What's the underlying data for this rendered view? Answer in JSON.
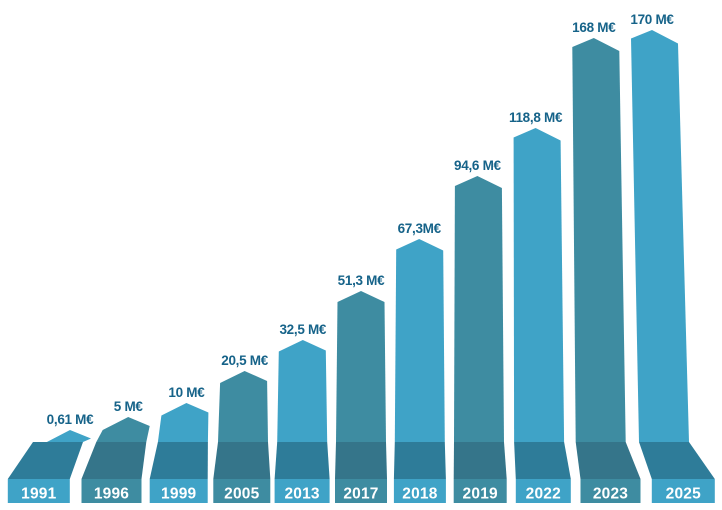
{
  "chart_data": {
    "type": "bar",
    "style": "3d-perspective-pointed-bars",
    "title": "",
    "xlabel": "",
    "ylabel": "",
    "unit": "M€",
    "axes_visible": false,
    "grid": false,
    "legend": false,
    "background": "#FFFFFF",
    "categories": [
      "1991",
      "1996",
      "1999",
      "2005",
      "2013",
      "2017",
      "2018",
      "2019",
      "2022",
      "2023",
      "2025"
    ],
    "values": [
      0.61,
      5,
      10,
      20.5,
      32.5,
      51.3,
      67.3,
      94.6,
      118.8,
      168,
      170
    ],
    "value_labels": [
      "0,61 M€",
      "5 M€",
      "10 M€",
      "20,5 M€",
      "32,5 M€",
      "51,3 M€",
      "67,3M€",
      "94,6 M€",
      "118,8 M€",
      "168 M€",
      "170 M€"
    ],
    "bars": [
      {
        "year": "1991",
        "value": 0.61,
        "label": "0,61 M€",
        "tone": "light"
      },
      {
        "year": "1996",
        "value": 5,
        "label": "5 M€",
        "tone": "dark"
      },
      {
        "year": "1999",
        "value": 10,
        "label": "10 M€",
        "tone": "light"
      },
      {
        "year": "2005",
        "value": 20.5,
        "label": "20,5 M€",
        "tone": "dark"
      },
      {
        "year": "2013",
        "value": 32.5,
        "label": "32,5 M€",
        "tone": "light"
      },
      {
        "year": "2017",
        "value": 51.3,
        "label": "51,3 M€",
        "tone": "dark"
      },
      {
        "year": "2018",
        "value": 67.3,
        "label": "67,3M€",
        "tone": "light"
      },
      {
        "year": "2019",
        "value": 94.6,
        "label": "94,6 M€",
        "tone": "dark"
      },
      {
        "year": "2022",
        "value": 118.8,
        "label": "118,8 M€",
        "tone": "light"
      },
      {
        "year": "2023",
        "value": 168,
        "label": "168 M€",
        "tone": "dark"
      },
      {
        "year": "2025",
        "value": 170,
        "label": "170 M€",
        "tone": "light"
      }
    ],
    "colors": {
      "bar_light": "#3FA3C7",
      "bar_dark": "#3E8CA1",
      "pedestal_light": "#2E7C99",
      "pedestal_dark": "#35758A",
      "value_text": "#166389",
      "year_text": "#FFFFFF",
      "background": "#FFFFFF"
    }
  }
}
